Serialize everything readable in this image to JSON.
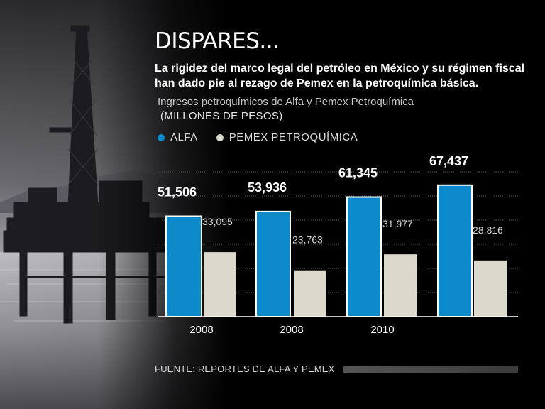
{
  "header": {
    "title": "DISPARES...",
    "subtitle": "La rigidez del marco legal del petróleo en México y su régimen fiscal han dado pie al rezago de Pemex en la petroquímica básica.",
    "description": "Ingresos petroquímicos de Alfa y Pemex Petroquímica",
    "units": "(MILLONES DE PESOS)"
  },
  "legend": [
    {
      "label": "ALFA",
      "color": "#0d8ac9"
    },
    {
      "label": "PEMEX PETROQUÍMICA",
      "color": "#dcd9cc"
    }
  ],
  "chart_data": {
    "type": "bar",
    "categories": [
      "2008",
      "2008",
      "2010",
      ""
    ],
    "series": [
      {
        "name": "ALFA",
        "color": "#0d8ac9",
        "values": [
          51506,
          53936,
          61345,
          67437
        ],
        "labels": [
          "51,506",
          "53,936",
          "61,345",
          "67,437"
        ]
      },
      {
        "name": "PEMEX PETROQUÍMICA",
        "color": "#dcd9cc",
        "values": [
          33095,
          23763,
          31977,
          28816
        ],
        "labels": [
          "33,095",
          "23,763",
          "31,977",
          "28,816"
        ]
      }
    ],
    "ylim": [
      0,
      75000
    ],
    "grid": true,
    "legend_position": "top-left"
  },
  "footer": {
    "source": "FUENTE:  REPORTES DE ALFA Y PEMEX"
  }
}
